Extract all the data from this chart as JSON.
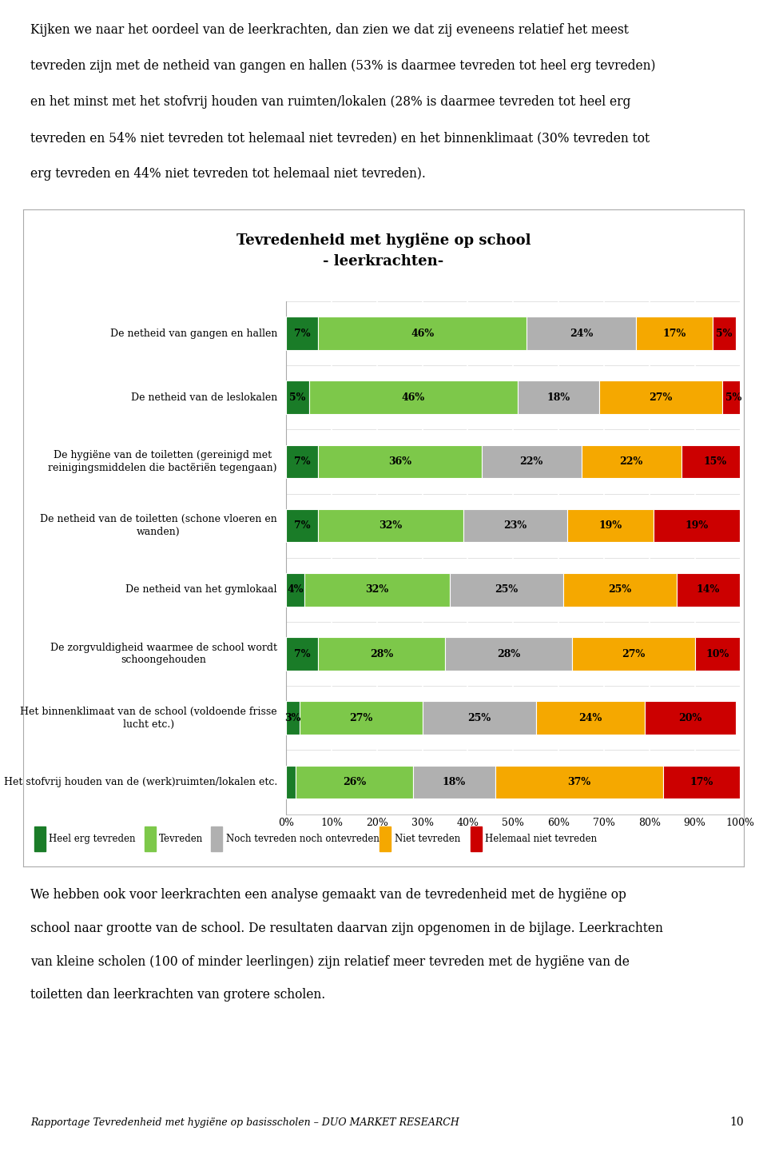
{
  "title_line1": "Tevredenheid met hygiëne op school",
  "title_line2": "- leerkrachten-",
  "categories": [
    "De netheid van gangen en hallen",
    "De netheid van de leslokalen",
    "De hygiëne van de toiletten (gereinigd met\nreinigingsmiddelen die bactëriën tegengaan)",
    "De netheid van de toiletten (schone vloeren en\nwanden)",
    "De netheid van het gymlokaal",
    "De zorgvuldigheid waarmee de school wordt\nschoongehouden",
    "Het binnenklimaat van de school (voldoende frisse\nlucht etc.)",
    "Het stofvrij houden van de (werk)ruimten/lokalen etc."
  ],
  "data": [
    [
      7,
      46,
      24,
      17,
      5
    ],
    [
      5,
      46,
      18,
      27,
      5
    ],
    [
      7,
      36,
      22,
      22,
      15
    ],
    [
      7,
      32,
      23,
      19,
      19
    ],
    [
      4,
      32,
      25,
      25,
      14
    ],
    [
      7,
      28,
      28,
      27,
      10
    ],
    [
      3,
      27,
      25,
      24,
      20
    ],
    [
      2,
      26,
      18,
      37,
      17
    ]
  ],
  "colors": [
    "#1a7c28",
    "#7dc84a",
    "#b0b0b0",
    "#f5a800",
    "#cc0000"
  ],
  "legend_labels": [
    "Heel erg tevreden",
    "Tevreden",
    "Noch tevreden noch ontevreden",
    "Niet tevreden",
    "Helemaal niet tevreden"
  ],
  "top_text_lines": [
    "Kijken we naar het oordeel van de leerkrachten, dan zien we dat zij eveneens relatief het meest",
    "tevreden zijn met de netheid van gangen en hallen (53% is daarmee tevreden tot heel erg tevreden)",
    "en het minst met het stofvrij houden van ruimten/lokalen (28% is daarmee tevreden tot heel erg",
    "tevreden en 54% niet tevreden tot helemaal niet tevreden) en het binnenklimaat (30% tevreden tot",
    "erg tevreden en 44% niet tevreden tot helemaal niet tevreden)."
  ],
  "bottom_text_lines": [
    "We hebben ook voor leerkrachten een analyse gemaakt van de tevredenheid met de hygiëne op",
    "school naar grootte van de school. De resultaten daarvan zijn opgenomen in de bijlage. Leerkrachten",
    "van kleine scholen (100 of minder leerlingen) zijn relatief meer tevreden met de hygiëne van de",
    "toiletten dan leerkrachten van grotere scholen."
  ],
  "footer_text": "Rapportage Tevredenheid met hygiëne op basisscholen – DUO M",
  "footer_text_small": "ARKET",
  "footer_text_end": " R",
  "footer_text_sc": "ESEARCH",
  "footer_full": "Rapportage Tevredenheid met hygiëne op basisscholen – DUO MARKET RESEARCH",
  "page_number": "10",
  "background_color": "#ffffff"
}
